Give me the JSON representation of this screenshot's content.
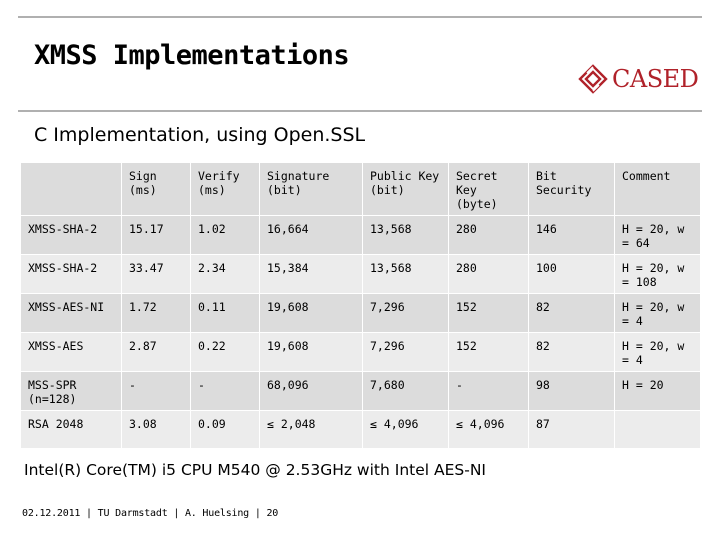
{
  "slide": {
    "title": "XMSS Implementations",
    "subtitle": "C Implementation, using Open.SSL",
    "logo_text": "CASED",
    "note": "Intel(R) Core(TM) i5 CPU M540 @ 2.53GHz with Intel  AES-NI",
    "footer": "02.12.2011 | TU Darmstadt | A. Huelsing | 20"
  },
  "colors": {
    "header_bg": "#dcdcdc",
    "row_dark": "#dcdcdc",
    "row_light": "#ececec",
    "logo_red": "#b0222a"
  },
  "icons": {
    "logo": "cased-diamond-icon"
  },
  "table": {
    "headers": [
      "",
      "Sign (ms)",
      "Verify (ms)",
      "Signature (bit)",
      "Public Key (bit)",
      "Secret Key (byte)",
      "Bit Security",
      "Comment"
    ],
    "rows": [
      {
        "cells": [
          "XMSS-SHA-2",
          "15.17",
          "1.02",
          "16,664",
          "13,568",
          "280",
          "146",
          "H = 20, w = 64"
        ],
        "bold": []
      },
      {
        "cells": [
          "XMSS-SHA-2",
          "33.47",
          "2.34",
          "15,384",
          "13,568",
          "280",
          "100",
          "H = 20, w = 108"
        ],
        "bold": [
          3,
          4
        ]
      },
      {
        "cells": [
          "XMSS-AES-NI",
          "1.72",
          "0.11",
          "19,608",
          "7,296",
          "152",
          "82",
          "H = 20, w = 4"
        ],
        "bold": [
          1,
          2
        ]
      },
      {
        "cells": [
          "XMSS-AES",
          "2.87",
          "0.22",
          "19,608",
          "7,296",
          "152",
          "82",
          "H = 20, w = 4"
        ],
        "bold": []
      },
      {
        "cells": [
          "MSS-SPR (n=128)",
          "-",
          "-",
          "68,096",
          "7,680",
          "-",
          "98",
          "H = 20"
        ],
        "bold": [
          3,
          4
        ]
      },
      {
        "cells": [
          "RSA 2048",
          "3.08",
          "0.09",
          "≤ 2,048",
          "≤ 4,096",
          "≤ 4,096",
          "87",
          ""
        ],
        "bold": [
          1,
          2
        ]
      }
    ]
  }
}
